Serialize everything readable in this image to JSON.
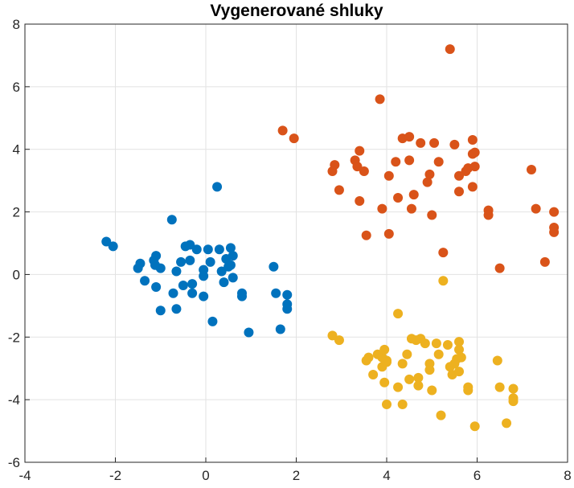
{
  "chart_data": {
    "type": "scatter",
    "title": "Vygenerované shluky",
    "xlabel": "",
    "ylabel": "",
    "xlim": [
      -4,
      8
    ],
    "ylim": [
      -6,
      8
    ],
    "xticks": [
      -4,
      -2,
      0,
      2,
      4,
      6,
      8
    ],
    "yticks": [
      -6,
      -4,
      -2,
      0,
      2,
      4,
      6,
      8
    ],
    "x_tick_labels": [
      "-4",
      "-2",
      "0",
      "2",
      "4",
      "6",
      "8"
    ],
    "y_tick_labels": [
      "-6",
      "-4",
      "-2",
      "0",
      "2",
      "4",
      "6",
      "8"
    ],
    "grid": true,
    "legend": "none",
    "series": [
      {
        "color": "#0072BD",
        "points": [
          [
            -2.2,
            1.05
          ],
          [
            -2.05,
            0.9
          ],
          [
            -1.5,
            0.2
          ],
          [
            -1.45,
            0.35
          ],
          [
            -1.35,
            -0.2
          ],
          [
            -1.15,
            0.45
          ],
          [
            -1.12,
            0.3
          ],
          [
            -1.1,
            0.6
          ],
          [
            -1.1,
            -0.4
          ],
          [
            -1.0,
            0.2
          ],
          [
            -1.0,
            -1.15
          ],
          [
            -0.75,
            1.75
          ],
          [
            -0.72,
            -0.6
          ],
          [
            -0.65,
            0.1
          ],
          [
            -0.65,
            -1.1
          ],
          [
            -0.55,
            0.4
          ],
          [
            -0.5,
            -0.35
          ],
          [
            -0.45,
            0.9
          ],
          [
            -0.35,
            0.45
          ],
          [
            -0.35,
            0.95
          ],
          [
            -0.3,
            -0.6
          ],
          [
            -0.3,
            -0.3
          ],
          [
            -0.2,
            0.8
          ],
          [
            -0.05,
            0.15
          ],
          [
            -0.05,
            -0.05
          ],
          [
            -0.05,
            -0.7
          ],
          [
            0.05,
            0.8
          ],
          [
            0.1,
            0.4
          ],
          [
            0.15,
            -1.5
          ],
          [
            0.25,
            2.8
          ],
          [
            0.3,
            0.8
          ],
          [
            0.35,
            0.1
          ],
          [
            0.4,
            -0.25
          ],
          [
            0.45,
            0.5
          ],
          [
            0.5,
            0.25
          ],
          [
            0.55,
            0.3
          ],
          [
            0.55,
            0.85
          ],
          [
            0.6,
            0.6
          ],
          [
            0.6,
            -0.1
          ],
          [
            0.8,
            -0.6
          ],
          [
            0.8,
            -0.7
          ],
          [
            0.95,
            -1.85
          ],
          [
            1.5,
            0.25
          ],
          [
            1.55,
            -0.6
          ],
          [
            1.65,
            -1.75
          ],
          [
            1.8,
            -0.65
          ],
          [
            1.8,
            -0.95
          ],
          [
            1.8,
            -1.1
          ]
        ]
      },
      {
        "color": "#D95319",
        "points": [
          [
            5.4,
            7.2
          ],
          [
            3.85,
            5.6
          ],
          [
            1.7,
            4.6
          ],
          [
            1.95,
            4.35
          ],
          [
            2.8,
            3.3
          ],
          [
            2.85,
            3.5
          ],
          [
            2.95,
            2.7
          ],
          [
            3.3,
            3.65
          ],
          [
            3.35,
            3.45
          ],
          [
            3.4,
            3.95
          ],
          [
            3.5,
            3.3
          ],
          [
            3.55,
            1.25
          ],
          [
            3.4,
            2.35
          ],
          [
            3.9,
            2.1
          ],
          [
            4.05,
            3.15
          ],
          [
            4.05,
            1.3
          ],
          [
            4.2,
            3.6
          ],
          [
            4.25,
            2.45
          ],
          [
            4.35,
            4.35
          ],
          [
            4.5,
            4.4
          ],
          [
            4.5,
            3.65
          ],
          [
            4.55,
            2.1
          ],
          [
            4.6,
            2.55
          ],
          [
            4.75,
            4.2
          ],
          [
            4.9,
            2.95
          ],
          [
            4.95,
            3.2
          ],
          [
            5.0,
            1.9
          ],
          [
            5.05,
            4.2
          ],
          [
            5.15,
            3.6
          ],
          [
            5.25,
            0.7
          ],
          [
            5.5,
            4.15
          ],
          [
            5.6,
            3.15
          ],
          [
            5.6,
            2.65
          ],
          [
            5.75,
            3.3
          ],
          [
            5.8,
            3.4
          ],
          [
            5.9,
            4.3
          ],
          [
            5.9,
            3.85
          ],
          [
            5.9,
            2.8
          ],
          [
            5.95,
            3.45
          ],
          [
            6.25,
            2.05
          ],
          [
            6.25,
            1.9
          ],
          [
            6.5,
            0.2
          ],
          [
            7.2,
            3.35
          ],
          [
            7.3,
            2.1
          ],
          [
            7.5,
            0.4
          ],
          [
            7.7,
            2.0
          ],
          [
            7.7,
            1.5
          ],
          [
            7.7,
            1.35
          ],
          [
            5.95,
            3.9
          ]
        ]
      },
      {
        "color": "#EDB120",
        "points": [
          [
            5.25,
            -0.2
          ],
          [
            4.25,
            -1.25
          ],
          [
            2.8,
            -1.95
          ],
          [
            2.95,
            -2.1
          ],
          [
            3.8,
            -2.55
          ],
          [
            3.9,
            -2.65
          ],
          [
            3.9,
            -2.95
          ],
          [
            3.95,
            -2.4
          ],
          [
            3.95,
            -3.45
          ],
          [
            4.0,
            -4.15
          ],
          [
            4.0,
            -2.75
          ],
          [
            4.0,
            -2.8
          ],
          [
            3.55,
            -2.75
          ],
          [
            3.6,
            -2.65
          ],
          [
            3.7,
            -3.2
          ],
          [
            4.25,
            -3.6
          ],
          [
            4.35,
            -2.85
          ],
          [
            4.35,
            -4.15
          ],
          [
            4.45,
            -2.55
          ],
          [
            4.5,
            -3.35
          ],
          [
            4.55,
            -2.05
          ],
          [
            4.65,
            -2.1
          ],
          [
            4.7,
            -3.55
          ],
          [
            4.7,
            -3.3
          ],
          [
            4.75,
            -2.05
          ],
          [
            4.85,
            -2.2
          ],
          [
            4.95,
            -2.85
          ],
          [
            4.95,
            -3.05
          ],
          [
            5.0,
            -3.7
          ],
          [
            5.1,
            -2.2
          ],
          [
            5.15,
            -2.55
          ],
          [
            5.2,
            -4.5
          ],
          [
            5.35,
            -2.25
          ],
          [
            5.4,
            -2.95
          ],
          [
            5.45,
            -3.2
          ],
          [
            5.5,
            -2.85
          ],
          [
            5.55,
            -2.7
          ],
          [
            5.6,
            -2.15
          ],
          [
            5.6,
            -2.4
          ],
          [
            5.6,
            -3.1
          ],
          [
            5.65,
            -2.65
          ],
          [
            5.8,
            -3.6
          ],
          [
            5.8,
            -3.7
          ],
          [
            5.95,
            -4.85
          ],
          [
            6.45,
            -2.75
          ],
          [
            6.5,
            -3.6
          ],
          [
            6.65,
            -4.75
          ],
          [
            6.8,
            -3.65
          ],
          [
            6.8,
            -3.95
          ],
          [
            6.8,
            -4.05
          ]
        ]
      }
    ]
  }
}
